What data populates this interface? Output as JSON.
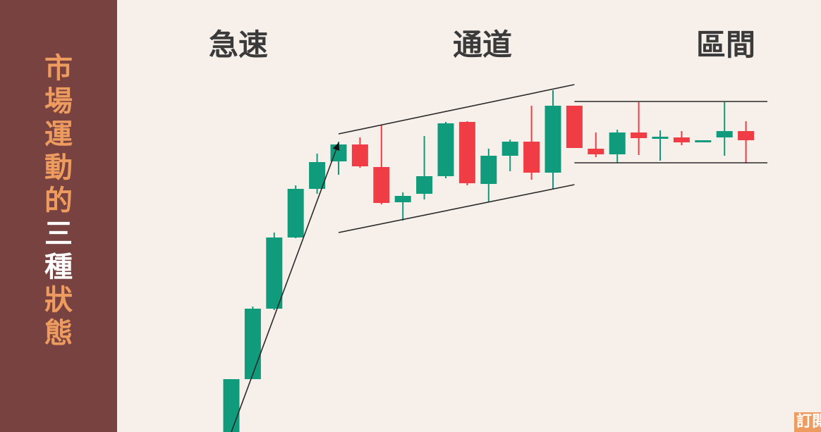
{
  "sidebar": {
    "title_chars": [
      {
        "char": "市",
        "highlight": false
      },
      {
        "char": "場",
        "highlight": false
      },
      {
        "char": "運",
        "highlight": false
      },
      {
        "char": "動",
        "highlight": false
      },
      {
        "char": "的",
        "highlight": false
      },
      {
        "char": "三",
        "highlight": true
      },
      {
        "char": "種",
        "highlight": true
      },
      {
        "char": "狀",
        "highlight": false
      },
      {
        "char": "態",
        "highlight": false
      }
    ]
  },
  "sections": {
    "rapid": "急速",
    "channel": "通道",
    "range": "區間"
  },
  "badge": {
    "label": "訂閱"
  },
  "colors": {
    "sidebar_bg": "#77423f",
    "title_accent": "#ee9b5f",
    "up": "#109c7c",
    "down": "#ef3c45",
    "background": "#f6efea"
  },
  "chart_data": {
    "type": "candlestick",
    "ylim": [
      0,
      613
    ],
    "candles": [
      {
        "o": 75,
        "c": 0,
        "h": 75,
        "l": 0,
        "dir": "up"
      },
      {
        "o": 175,
        "c": 75,
        "h": 178,
        "l": 75,
        "dir": "up"
      },
      {
        "o": 276,
        "c": 175,
        "h": 283,
        "l": 173,
        "dir": "up"
      },
      {
        "o": 345,
        "c": 276,
        "h": 350,
        "l": 275,
        "dir": "up"
      },
      {
        "o": 383,
        "c": 345,
        "h": 395,
        "l": 338,
        "dir": "up"
      },
      {
        "o": 408,
        "c": 384,
        "h": 412,
        "l": 365,
        "dir": "up"
      },
      {
        "o": 408,
        "c": 377,
        "h": 418,
        "l": 375,
        "dir": "down"
      },
      {
        "o": 376,
        "c": 325,
        "h": 435,
        "l": 323,
        "dir": "down"
      },
      {
        "o": 326,
        "c": 335,
        "h": 340,
        "l": 300,
        "dir": "up"
      },
      {
        "o": 338,
        "c": 363,
        "h": 420,
        "l": 330,
        "dir": "up"
      },
      {
        "o": 363,
        "c": 438,
        "h": 440,
        "l": 360,
        "dir": "up"
      },
      {
        "o": 440,
        "c": 353,
        "h": 441,
        "l": 350,
        "dir": "down"
      },
      {
        "o": 352,
        "c": 392,
        "h": 402,
        "l": 327,
        "dir": "up"
      },
      {
        "o": 392,
        "c": 412,
        "h": 415,
        "l": 370,
        "dir": "up"
      },
      {
        "o": 412,
        "c": 368,
        "h": 463,
        "l": 358,
        "dir": "down"
      },
      {
        "o": 368,
        "c": 463,
        "h": 485,
        "l": 345,
        "dir": "up"
      },
      {
        "o": 463,
        "c": 403,
        "h": 463,
        "l": 403,
        "dir": "down"
      },
      {
        "o": 402,
        "c": 394,
        "h": 425,
        "l": 390,
        "dir": "down"
      },
      {
        "o": 394,
        "c": 425,
        "h": 429,
        "l": 382,
        "dir": "up"
      },
      {
        "o": 425,
        "c": 417,
        "h": 468,
        "l": 393,
        "dir": "down"
      },
      {
        "o": 417,
        "c": 419,
        "h": 428,
        "l": 385,
        "dir": "up"
      },
      {
        "o": 418,
        "c": 411,
        "h": 427,
        "l": 407,
        "dir": "down"
      },
      {
        "o": 412,
        "c": 414,
        "h": 414,
        "l": 412,
        "dir": "up"
      },
      {
        "o": 418,
        "c": 427,
        "h": 468,
        "l": 392,
        "dir": "up"
      },
      {
        "o": 427,
        "c": 414,
        "h": 441,
        "l": 381,
        "dir": "down"
      }
    ],
    "trend_arrow": {
      "from": {
        "i": 0,
        "y": 0
      },
      "to": {
        "i": 5,
        "y": 410
      }
    },
    "channel_lines": [
      {
        "from": {
          "i": 5,
          "y": 423
        },
        "to": {
          "i": 16,
          "y": 493
        }
      },
      {
        "from": {
          "i": 5,
          "y": 283
        },
        "to": {
          "i": 16,
          "y": 351
        }
      }
    ],
    "range_lines": [
      {
        "from": {
          "i": 16,
          "y": 469
        },
        "to": {
          "i": 25,
          "y": 469
        }
      },
      {
        "from": {
          "i": 16,
          "y": 382
        },
        "to": {
          "i": 25,
          "y": 382
        }
      }
    ]
  }
}
